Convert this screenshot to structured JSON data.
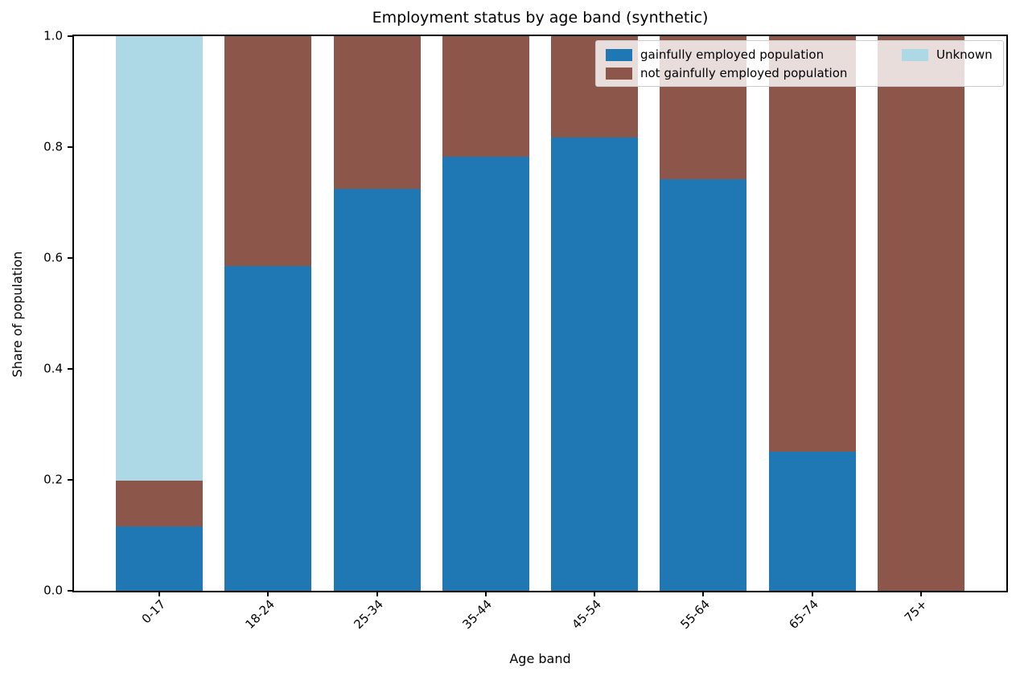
{
  "chart_data": {
    "type": "bar",
    "stacked": true,
    "title": "Employment status by age band (synthetic)",
    "xlabel": "Age band",
    "ylabel": "Share of population",
    "ylim": [
      0.0,
      1.0
    ],
    "yticks": [
      0.0,
      0.2,
      0.4,
      0.6,
      0.8,
      1.0
    ],
    "grid": false,
    "legend_position": "upper right",
    "categories": [
      "0-17",
      "18-24",
      "25-34",
      "35-44",
      "45-54",
      "55-64",
      "65-74",
      "75+"
    ],
    "series": [
      {
        "name": "gainfully employed population",
        "color": "#1f77b4",
        "values": [
          0.116,
          0.585,
          0.724,
          0.782,
          0.817,
          0.742,
          0.251,
          0.0
        ]
      },
      {
        "name": "not gainfully employed population",
        "color": "#8c564b",
        "values": [
          0.082,
          0.415,
          0.276,
          0.218,
          0.183,
          0.258,
          0.749,
          1.0
        ]
      },
      {
        "name": "Unknown",
        "color": "#add8e6",
        "values": [
          0.802,
          0.0,
          0.0,
          0.0,
          0.0,
          0.0,
          0.0,
          0.0
        ]
      }
    ]
  }
}
